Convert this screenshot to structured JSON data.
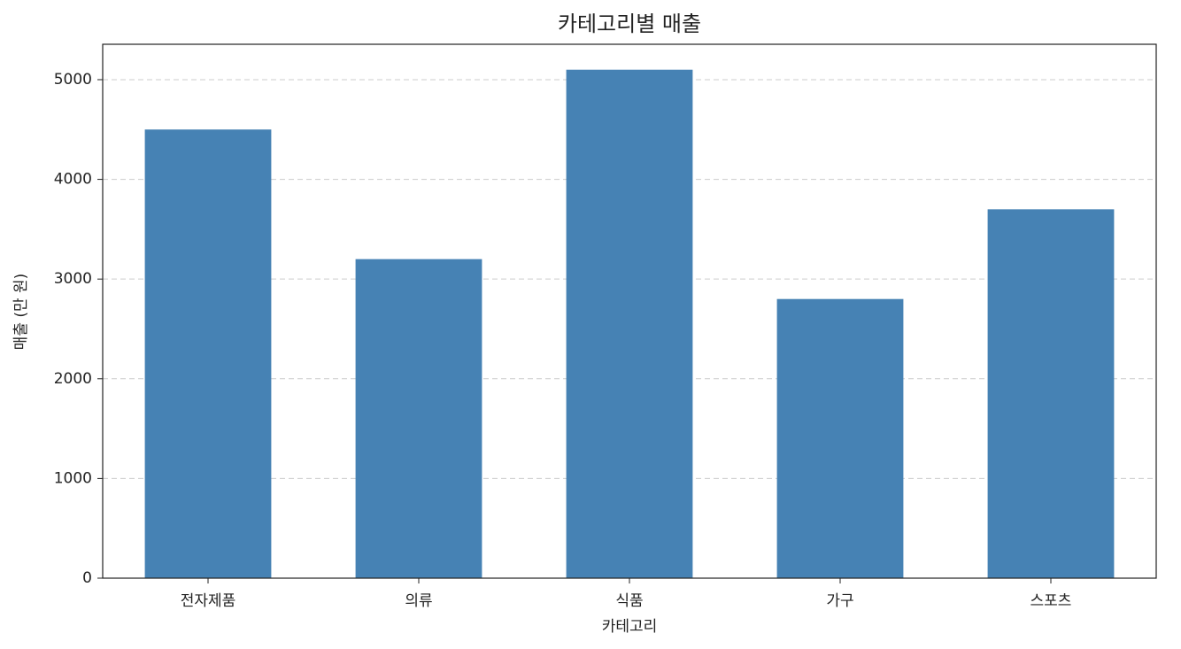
{
  "chart_data": {
    "type": "bar",
    "title": "카테고리별 매출",
    "x_label": "카테고리",
    "y_label": "매출 (만 원)",
    "categories": [
      "전자제품",
      "의류",
      "식품",
      "가구",
      "스포츠"
    ],
    "values": [
      4500,
      3200,
      5100,
      2800,
      3700
    ],
    "color": "#4682b4",
    "ylim": [
      0,
      5355
    ],
    "yticks": [
      0,
      1000,
      2000,
      3000,
      4000,
      5000
    ],
    "grid": true
  }
}
